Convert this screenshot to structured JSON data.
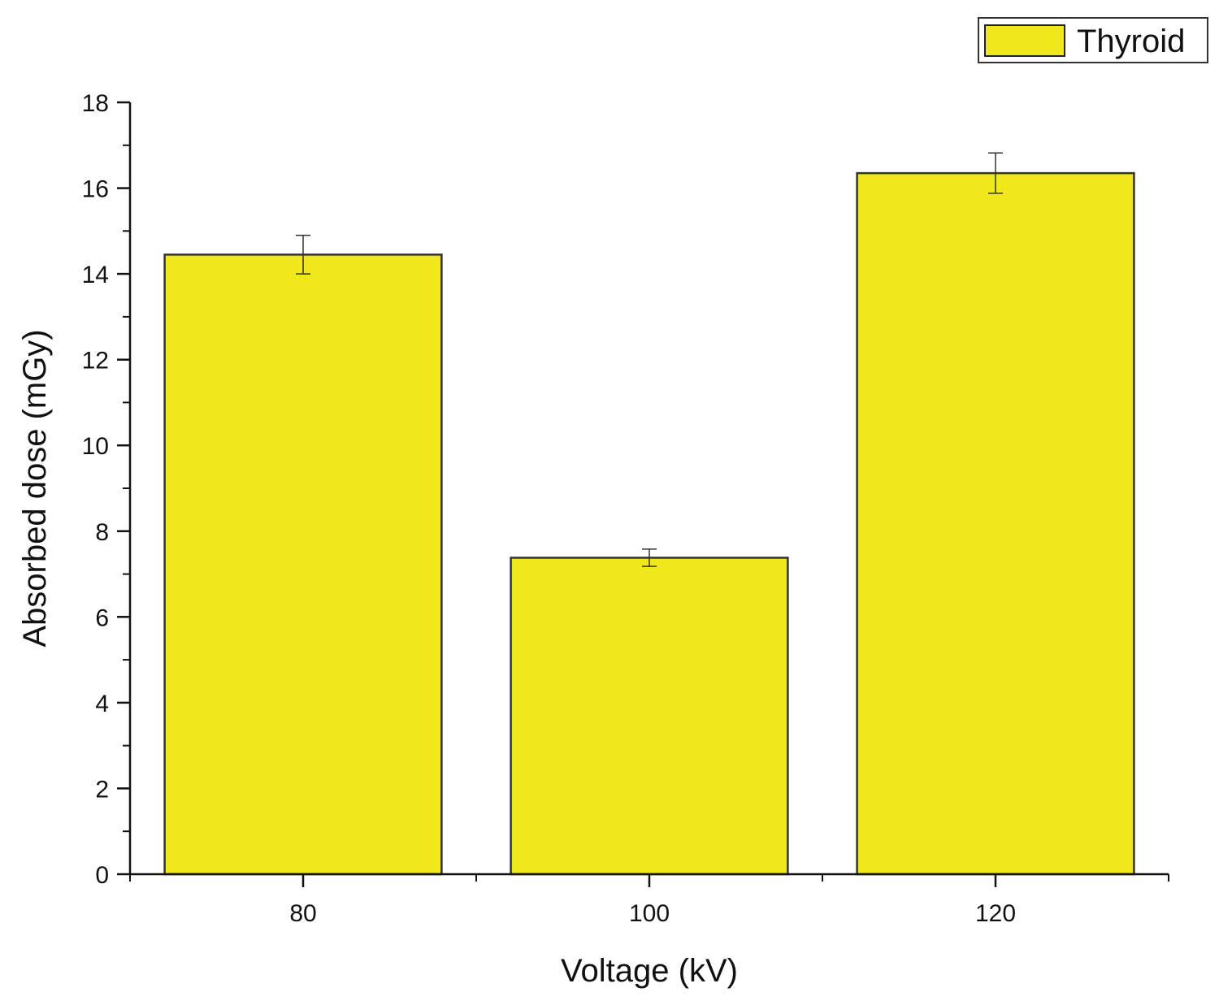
{
  "chart_data": {
    "type": "bar",
    "title": "",
    "xlabel": "Voltage (kV)",
    "ylabel": "Absorbed dose (mGy)",
    "categories": [
      "80",
      "100",
      "120"
    ],
    "series": [
      {
        "name": "Thyroid",
        "values": [
          14.45,
          7.38,
          16.35
        ],
        "errors": [
          0.45,
          0.2,
          0.47
        ],
        "color": "#f0e81a"
      }
    ],
    "ylim": [
      0,
      18
    ],
    "yticks": [
      0,
      2,
      4,
      6,
      8,
      10,
      12,
      14,
      16,
      18
    ],
    "ytick_labels": [
      "0",
      "2",
      "4",
      "6",
      "8",
      "10",
      "12",
      "14",
      "16",
      "18"
    ],
    "grid": false,
    "legend": {
      "placement": "top-right",
      "entries": [
        "Thyroid"
      ]
    }
  }
}
